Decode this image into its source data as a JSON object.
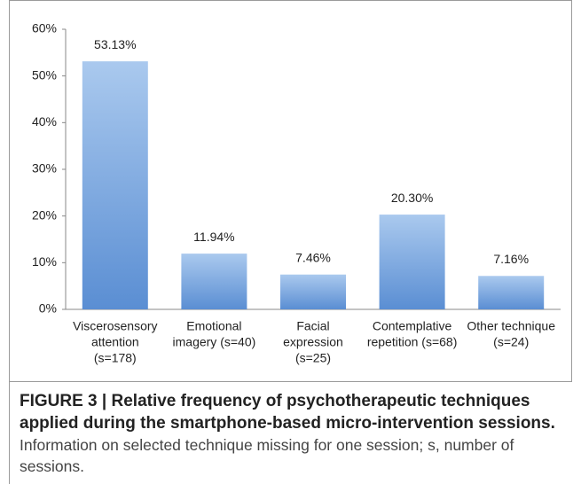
{
  "chart_data": {
    "type": "bar",
    "categories": [
      [
        "Viscerosensory",
        "attention",
        "(s=178)"
      ],
      [
        "Emotional",
        "imagery (s=40)"
      ],
      [
        "Facial",
        "expression",
        "(s=25)"
      ],
      [
        "Contemplative",
        "repetition (s=68)"
      ],
      [
        "Other technique",
        "(s=24)"
      ]
    ],
    "values": [
      53.13,
      11.94,
      7.46,
      20.3,
      7.16
    ],
    "value_labels": [
      "53.13%",
      "11.94%",
      "7.46%",
      "20.30%",
      "7.16%"
    ],
    "ylim": [
      0,
      60
    ],
    "yticks": [
      {
        "value": 0,
        "label": "0%"
      },
      {
        "value": 10,
        "label": "10%"
      },
      {
        "value": 20,
        "label": "20%"
      },
      {
        "value": 30,
        "label": "30%"
      },
      {
        "value": 40,
        "label": "40%"
      },
      {
        "value": 50,
        "label": "50%"
      },
      {
        "value": 60,
        "label": "60%"
      }
    ],
    "grid": false
  },
  "caption": {
    "label": "FIGURE 3 | Relative frequency of psychotherapeutic techniques applied during the smartphone-based micro-intervention sessions.",
    "text": "Information on selected technique missing for one session; s, number of sessions."
  }
}
